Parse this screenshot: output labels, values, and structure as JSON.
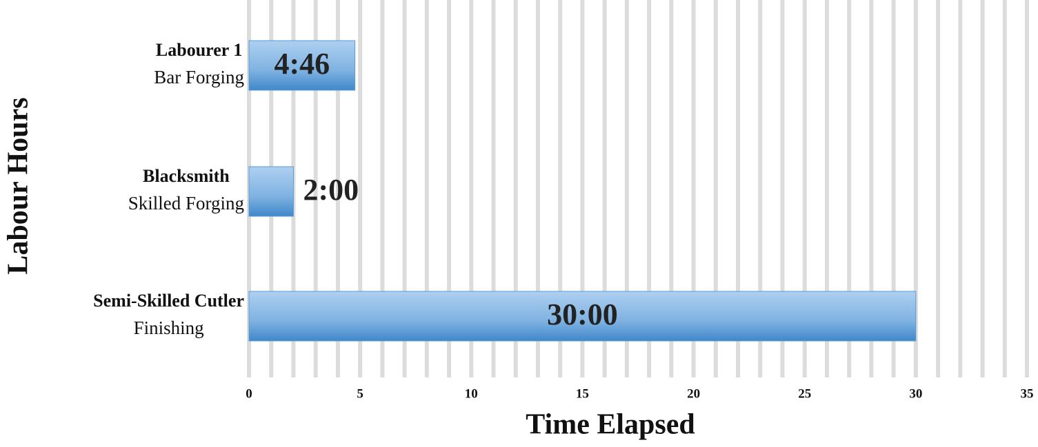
{
  "chart_data": {
    "type": "barh",
    "x_label": "Time Elapsed",
    "y_label": "Labour Hours",
    "categories": [
      [
        "Labourer 1",
        "Bar Forging"
      ],
      [
        "Blacksmith",
        "Skilled Forging"
      ],
      [
        "Semi-Skilled Cutler",
        "Finishing"
      ]
    ],
    "values": [
      4.7667,
      2,
      30
    ],
    "value_labels": [
      "4:46",
      "2:00",
      "30:00"
    ],
    "color": "#5b9bd5",
    "xlim": [
      0,
      35
    ],
    "xticks": [
      0,
      5,
      10,
      15,
      20,
      25,
      30,
      35
    ],
    "minor_xticks": [
      0,
      1,
      2,
      3,
      4,
      5,
      6,
      7,
      8,
      9,
      10,
      11,
      12,
      13,
      14,
      15,
      16,
      17,
      18,
      19,
      20,
      21,
      22,
      23,
      24,
      25,
      26,
      27,
      28,
      29,
      30,
      31,
      32,
      33,
      34,
      35
    ],
    "grid": true
  }
}
